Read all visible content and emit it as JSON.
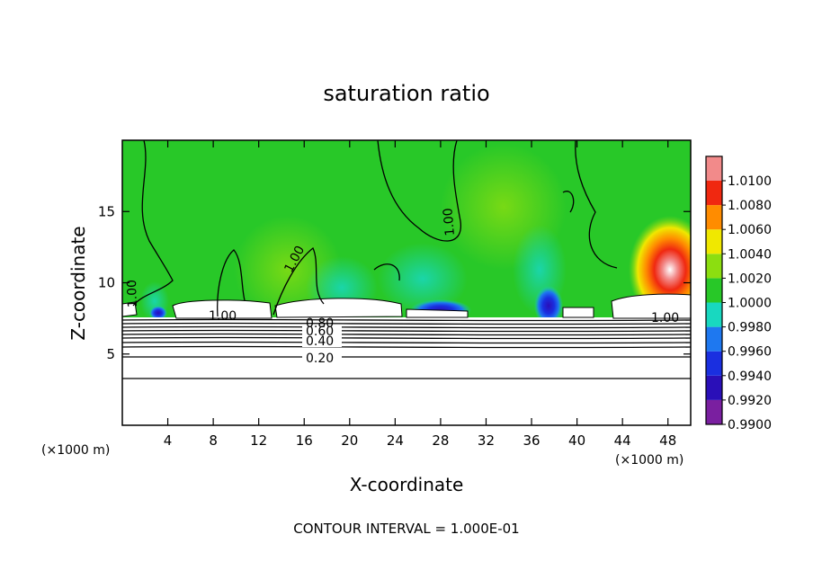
{
  "chart_data": {
    "type": "heatmap",
    "title": "saturation ratio",
    "xlabel": "X-coordinate",
    "ylabel": "Z-coordinate",
    "x_unit": "(×1000 m)",
    "z_unit": "(×1000 m)",
    "xlim": [
      0,
      50
    ],
    "ylim": [
      0,
      20
    ],
    "xticks": [
      4,
      8,
      12,
      16,
      20,
      24,
      28,
      32,
      36,
      40,
      44,
      48
    ],
    "yticks": [
      5,
      10,
      15
    ],
    "grid": false,
    "colorbar": {
      "position": "right",
      "levels": [
        0.99,
        0.992,
        0.994,
        0.996,
        0.998,
        1.0,
        1.002,
        1.004,
        1.006,
        1.008,
        1.01
      ],
      "labels": [
        "0.9900",
        "0.9920",
        "0.9940",
        "0.9960",
        "0.9980",
        "1.0000",
        "1.0020",
        "1.0040",
        "1.0060",
        "1.0080",
        "1.0100"
      ],
      "colors": [
        "#7a1fa0",
        "#2a0fb8",
        "#1a2fe0",
        "#1e78f0",
        "#18d8c0",
        "#28c828",
        "#8cde10",
        "#f0e800",
        "#ff8c00",
        "#f02810",
        "#f28a8a"
      ]
    },
    "contour_levels": [
      0.2,
      0.4,
      0.6,
      0.8,
      1.0
    ],
    "contour_labels": [
      "0.20",
      "0.40",
      "0.60",
      "0.80",
      "1.00"
    ],
    "contour_interval_text": "CONTOUR INTERVAL = 1.000E-01"
  }
}
